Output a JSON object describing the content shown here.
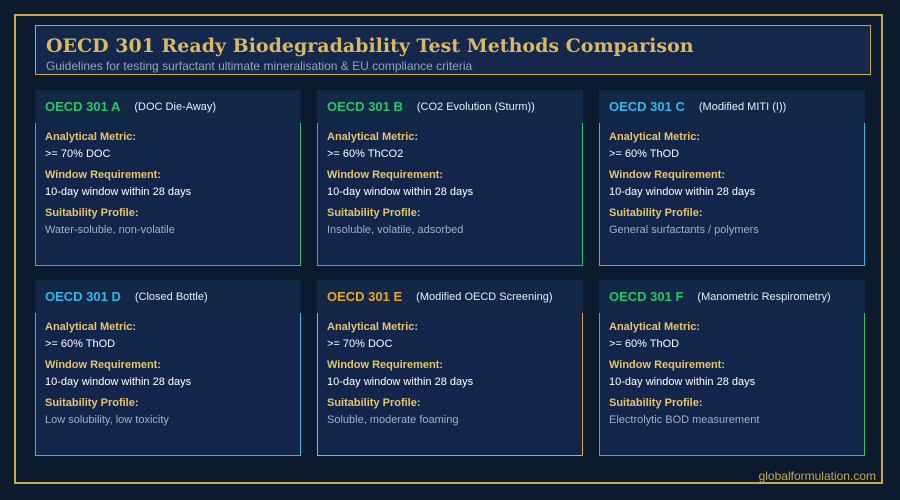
{
  "header": {
    "title": "OECD 301 Ready Biodegradability Test Methods Comparison",
    "subtitle": "Guidelines for testing surfactant ultimate mineralisation & EU compliance criteria"
  },
  "labels": {
    "metric": "Analytical Metric:",
    "window": "Window Requirement:",
    "profile": "Suitability Profile:"
  },
  "cards": [
    {
      "code": "OECD 301 A",
      "name": "(DOC Die-Away)",
      "metric": ">= 70% DOC",
      "window": "10-day window within 28 days",
      "profile": "Water-soluble, non-volatile",
      "accent": "#2bc466"
    },
    {
      "code": "OECD 301 B",
      "name": "(CO2 Evolution (Sturm))",
      "metric": ">= 60% ThCO2",
      "window": "10-day window within 28 days",
      "profile": "Insoluble, volatile, adsorbed",
      "accent": "#2bc466"
    },
    {
      "code": "OECD 301 C",
      "name": "(Modified MITI (I))",
      "metric": ">= 60% ThOD",
      "window": "10-day window within 28 days",
      "profile": "General surfactants / polymers",
      "accent": "#32b8e6"
    },
    {
      "code": "OECD 301 D",
      "name": "(Closed Bottle)",
      "metric": ">= 60% ThOD",
      "window": "10-day window within 28 days",
      "profile": "Low solubility, low toxicity",
      "accent": "#32b8e6"
    },
    {
      "code": "OECD 301 E",
      "name": "(Modified OECD Screening)",
      "metric": ">= 70% DOC",
      "window": "10-day window within 28 days",
      "profile": "Soluble, moderate foaming",
      "accent": "#e8a52a"
    },
    {
      "code": "OECD 301 F",
      "name": "(Manometric Respirometry)",
      "metric": ">= 60% ThOD",
      "window": "10-day window within 28 days",
      "profile": "Electrolytic BOD measurement",
      "accent": "#2bc466"
    }
  ],
  "footer": "globalformulation.com"
}
